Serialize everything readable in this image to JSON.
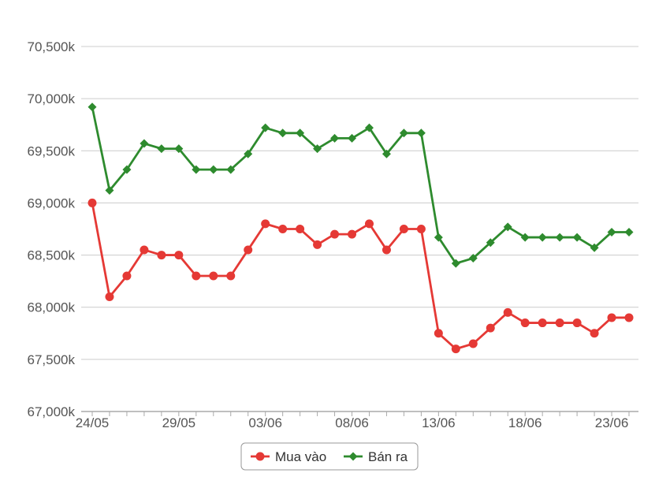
{
  "chart_data": {
    "type": "line",
    "x": [
      "24/05",
      "25/05",
      "26/05",
      "27/05",
      "28/05",
      "29/05",
      "30/05",
      "31/05",
      "01/06",
      "02/06",
      "03/06",
      "04/06",
      "05/06",
      "06/06",
      "07/06",
      "08/06",
      "09/06",
      "10/06",
      "11/06",
      "12/06",
      "13/06",
      "14/06",
      "15/06",
      "16/06",
      "17/06",
      "18/06",
      "19/06",
      "20/06",
      "21/06",
      "22/06",
      "23/06",
      "24/06"
    ],
    "x_tick_labels": [
      "24/05",
      "29/05",
      "03/06",
      "08/06",
      "13/06",
      "18/06",
      "23/06"
    ],
    "y_tick_labels": [
      "67,000k",
      "67,500k",
      "68,000k",
      "68,500k",
      "69,000k",
      "69,500k",
      "70,000k",
      "70,500k"
    ],
    "ylim": [
      67000,
      70500
    ],
    "grid": true,
    "legend_position": "bottom-center",
    "series": [
      {
        "name": "Mua vào",
        "color": "#e53935",
        "marker": "circle",
        "values": [
          69000,
          68100,
          68300,
          68550,
          68500,
          68500,
          68300,
          68300,
          68300,
          68550,
          68800,
          68750,
          68750,
          68600,
          68700,
          68700,
          68800,
          68550,
          68750,
          68750,
          67750,
          67600,
          67650,
          67800,
          67950,
          67850,
          67850,
          67850,
          67850,
          67750,
          67900,
          67900
        ]
      },
      {
        "name": "Bán ra",
        "color": "#2e8b2e",
        "marker": "diamond",
        "values": [
          69920,
          69120,
          69320,
          69570,
          69520,
          69520,
          69320,
          69320,
          69320,
          69470,
          69720,
          69670,
          69670,
          69520,
          69620,
          69620,
          69720,
          69470,
          69670,
          69670,
          68670,
          68420,
          68470,
          68620,
          68770,
          68670,
          68670,
          68670,
          68670,
          68570,
          68720,
          68720
        ]
      }
    ]
  }
}
